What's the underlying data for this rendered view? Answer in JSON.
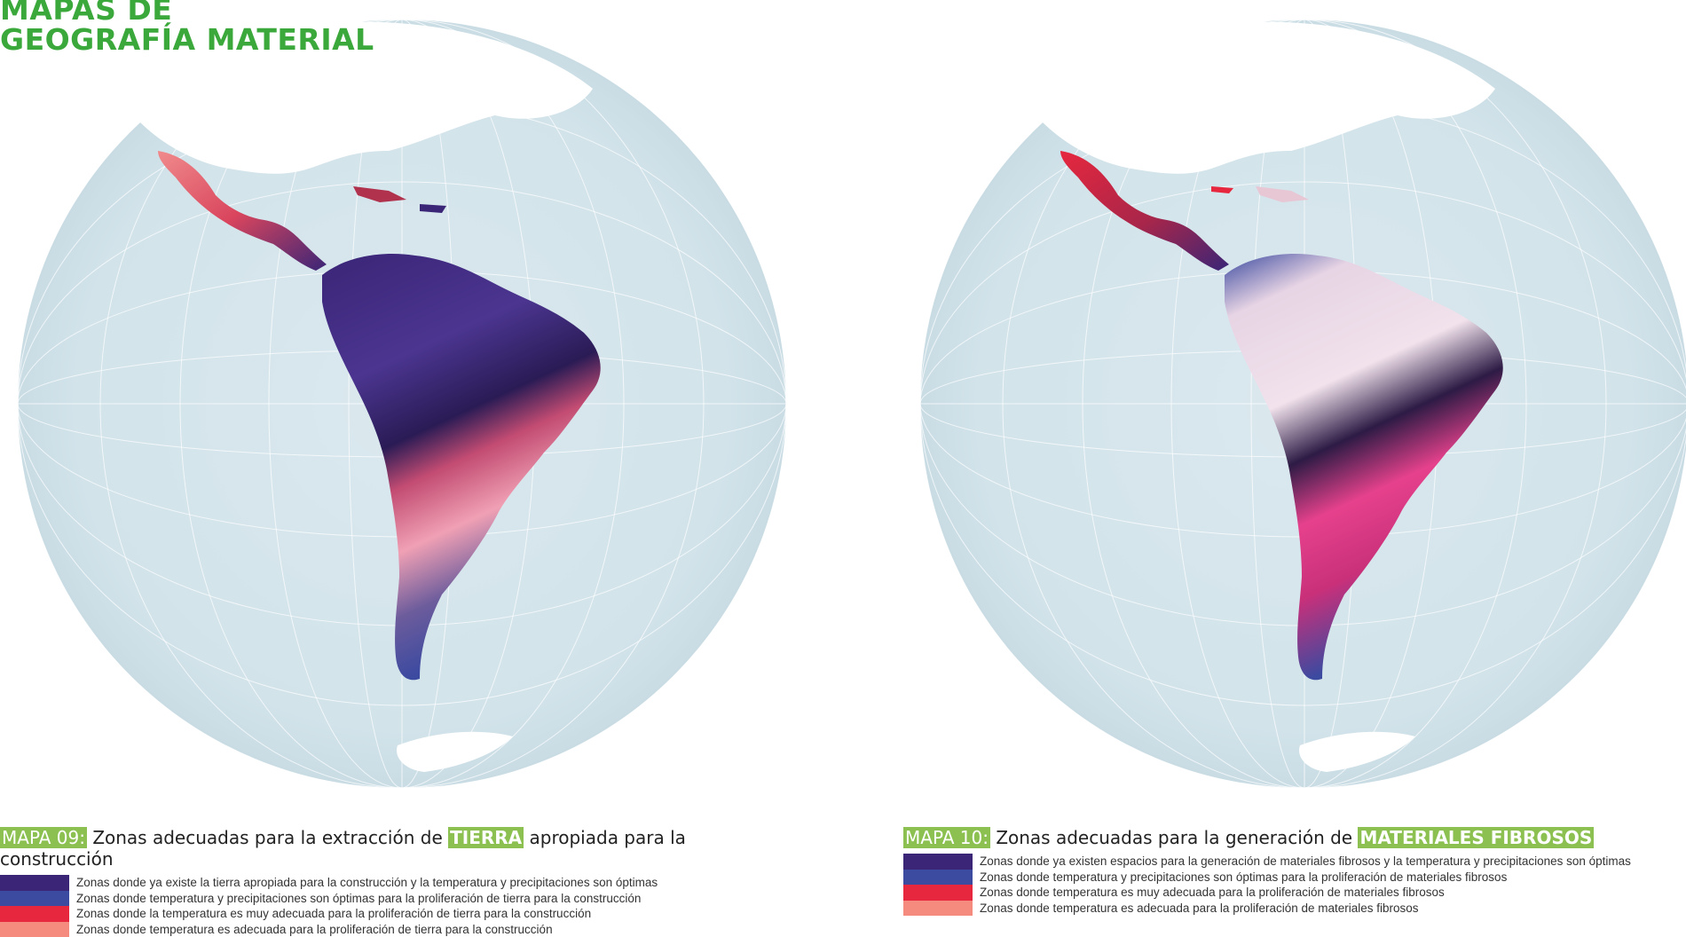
{
  "header": {
    "title_line1": "MAPAS DE",
    "title_line2": "GEOGRAFÍA MATERIAL"
  },
  "colors": {
    "title_green": "#3aa83b",
    "tag_green": "#8cc152",
    "ocean": "#d5e5ec",
    "land": "#ffffff",
    "legend_1": "#3a2577",
    "legend_2": "#3c4aa0",
    "legend_3": "#e6273e",
    "legend_4": "#f58a7f"
  },
  "maps": [
    {
      "tag": "MAPA 09:",
      "text_before": "Zonas adecuadas para la extracción de",
      "highlight": "TIERRA",
      "text_after": "apropiada para la construcción",
      "legend": [
        {
          "color": "#3a2577",
          "text": "Zonas donde ya existe la tierra apropiada para la construcción y la temperatura y precipitaciones son óptimas"
        },
        {
          "color": "#3c4aa0",
          "text": "Zonas donde temperatura y precipitaciones son óptimas para la proliferación de tierra para la construcción"
        },
        {
          "color": "#e6273e",
          "text": "Zonas donde la temperatura es muy adecuada para la proliferación de tierra para la construcción"
        },
        {
          "color": "#f58a7f",
          "text": "Zonas donde temperatura es adecuada para la proliferación de tierra para la construcción"
        }
      ]
    },
    {
      "tag": "MAPA 10:",
      "text_before": "Zonas adecuadas para la generación de",
      "highlight": "MATERIALES FIBROSOS",
      "text_after": "",
      "legend": [
        {
          "color": "#3a2577",
          "text": "Zonas donde ya existen espacios para la generación de materiales fibrosos y la temperatura y precipitaciones son óptimas"
        },
        {
          "color": "#3c4aa0",
          "text": "Zonas donde temperatura y precipitaciones son óptimas para la proliferación de materiales fibrosos"
        },
        {
          "color": "#e6273e",
          "text": "Zonas donde temperatura es muy adecuada para la proliferación de materiales fibrosos"
        },
        {
          "color": "#f58a7f",
          "text": "Zonas donde temperatura es adecuada para la proliferación de materiales fibrosos"
        }
      ]
    }
  ]
}
